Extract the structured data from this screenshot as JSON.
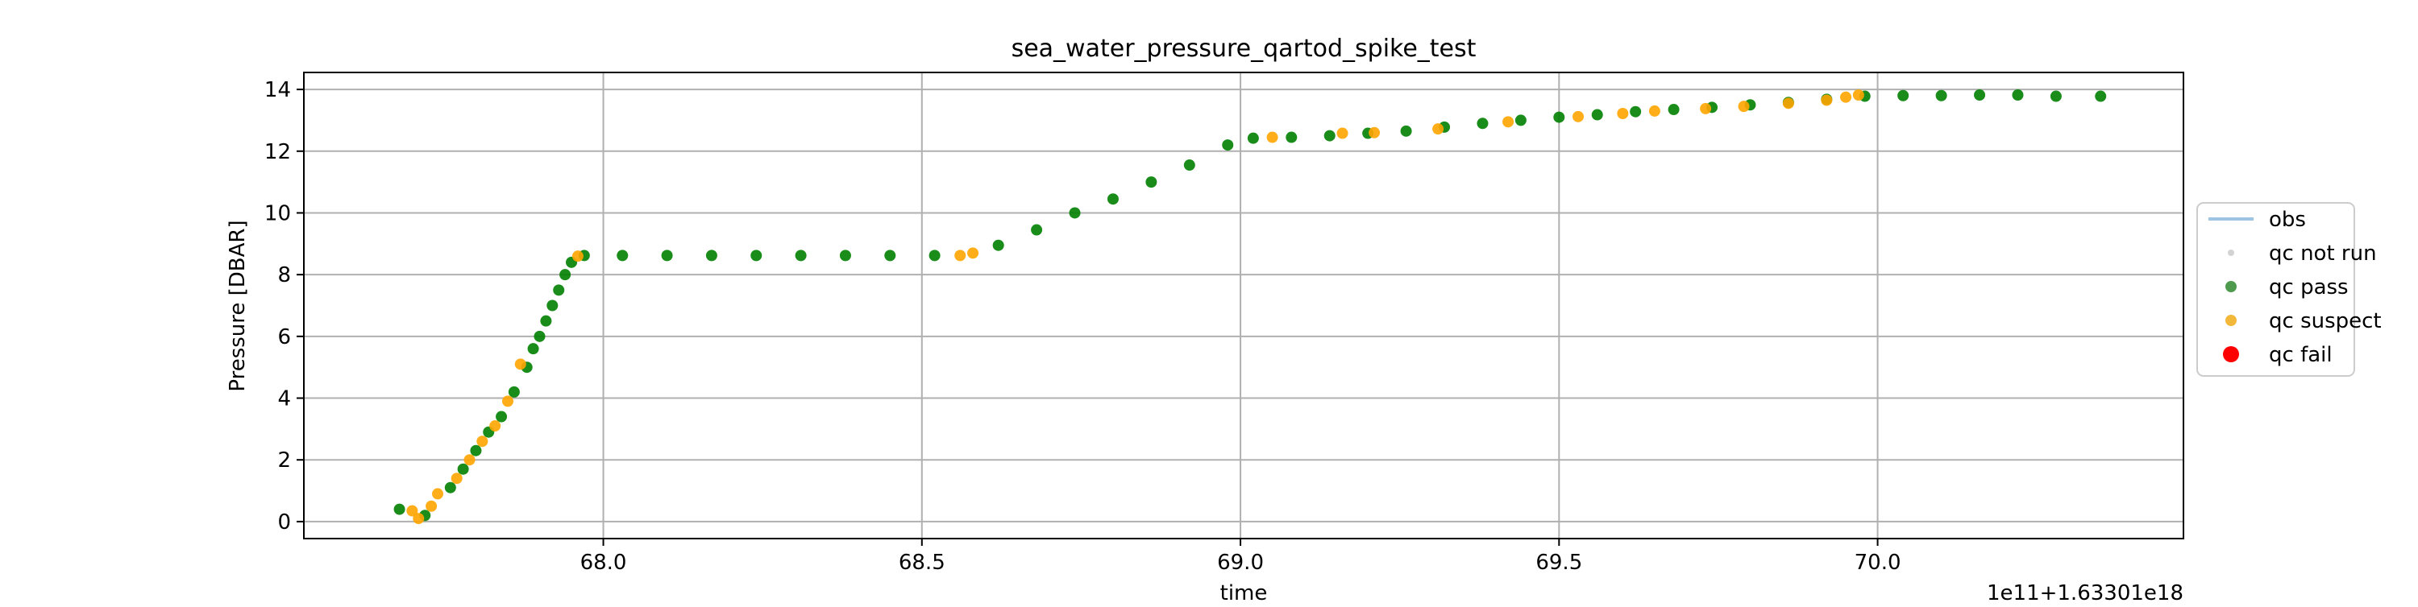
{
  "chart_data": {
    "type": "scatter",
    "title": "sea_water_pressure_qartod_spike_test",
    "xlabel": "time",
    "ylabel": "Pressure [DBAR]",
    "x_offset_label": "1e11+1.63301e18",
    "xlim": [
      67.53,
      70.48
    ],
    "ylim": [
      -0.55,
      14.55
    ],
    "xticks": [
      68.0,
      68.5,
      69.0,
      69.5,
      70.0
    ],
    "xtick_labels": [
      "68.0",
      "68.5",
      "69.0",
      "69.5",
      "70.0"
    ],
    "yticks": [
      0,
      2,
      4,
      6,
      8,
      10,
      12,
      14
    ],
    "ytick_labels": [
      "0",
      "2",
      "4",
      "6",
      "8",
      "10",
      "12",
      "14"
    ],
    "grid": true,
    "legend_placement": "outside-right",
    "legend": [
      {
        "label": "obs",
        "kind": "line",
        "color": "#9ec4e3"
      },
      {
        "label": "qc not run",
        "kind": "marker",
        "color": "#d3d3d3"
      },
      {
        "label": "qc pass",
        "kind": "marker",
        "color": "#4e9a4e"
      },
      {
        "label": "qc suspect",
        "kind": "marker",
        "color": "#f3b83a"
      },
      {
        "label": "qc fail",
        "kind": "marker",
        "color": "#ff0000"
      }
    ],
    "series": [
      {
        "name": "qc pass",
        "color": "#008000",
        "points": [
          [
            67.68,
            0.4
          ],
          [
            67.72,
            0.2
          ],
          [
            67.76,
            1.1
          ],
          [
            67.78,
            1.7
          ],
          [
            67.8,
            2.3
          ],
          [
            67.82,
            2.9
          ],
          [
            67.84,
            3.4
          ],
          [
            67.86,
            4.2
          ],
          [
            67.88,
            5.0
          ],
          [
            67.89,
            5.6
          ],
          [
            67.9,
            6.0
          ],
          [
            67.91,
            6.5
          ],
          [
            67.92,
            7.0
          ],
          [
            67.93,
            7.5
          ],
          [
            67.94,
            8.0
          ],
          [
            67.95,
            8.4
          ],
          [
            67.97,
            8.62
          ],
          [
            68.03,
            8.62
          ],
          [
            68.1,
            8.62
          ],
          [
            68.17,
            8.62
          ],
          [
            68.24,
            8.62
          ],
          [
            68.31,
            8.62
          ],
          [
            68.38,
            8.62
          ],
          [
            68.45,
            8.62
          ],
          [
            68.52,
            8.62
          ],
          [
            68.62,
            8.95
          ],
          [
            68.68,
            9.45
          ],
          [
            68.74,
            10.0
          ],
          [
            68.8,
            10.45
          ],
          [
            68.86,
            11.0
          ],
          [
            68.92,
            11.55
          ],
          [
            68.98,
            12.2
          ],
          [
            69.02,
            12.42
          ],
          [
            69.08,
            12.45
          ],
          [
            69.14,
            12.5
          ],
          [
            69.2,
            12.58
          ],
          [
            69.26,
            12.65
          ],
          [
            69.32,
            12.78
          ],
          [
            69.38,
            12.9
          ],
          [
            69.44,
            13.0
          ],
          [
            69.5,
            13.1
          ],
          [
            69.56,
            13.18
          ],
          [
            69.62,
            13.28
          ],
          [
            69.68,
            13.35
          ],
          [
            69.74,
            13.42
          ],
          [
            69.8,
            13.5
          ],
          [
            69.86,
            13.58
          ],
          [
            69.92,
            13.68
          ],
          [
            69.98,
            13.78
          ],
          [
            70.04,
            13.8
          ],
          [
            70.1,
            13.8
          ],
          [
            70.16,
            13.82
          ],
          [
            70.22,
            13.82
          ],
          [
            70.28,
            13.78
          ],
          [
            70.35,
            13.78
          ]
        ]
      },
      {
        "name": "qc suspect",
        "color": "#ffa500",
        "points": [
          [
            67.7,
            0.35
          ],
          [
            67.71,
            0.1
          ],
          [
            67.73,
            0.5
          ],
          [
            67.74,
            0.9
          ],
          [
            67.77,
            1.4
          ],
          [
            67.79,
            2.0
          ],
          [
            67.81,
            2.6
          ],
          [
            67.83,
            3.1
          ],
          [
            67.85,
            3.9
          ],
          [
            67.87,
            5.1
          ],
          [
            67.96,
            8.6
          ],
          [
            68.56,
            8.62
          ],
          [
            68.58,
            8.7
          ],
          [
            69.05,
            12.45
          ],
          [
            69.16,
            12.58
          ],
          [
            69.21,
            12.6
          ],
          [
            69.31,
            12.72
          ],
          [
            69.42,
            12.95
          ],
          [
            69.53,
            13.12
          ],
          [
            69.6,
            13.22
          ],
          [
            69.65,
            13.3
          ],
          [
            69.73,
            13.38
          ],
          [
            69.79,
            13.45
          ],
          [
            69.86,
            13.55
          ],
          [
            69.92,
            13.65
          ],
          [
            69.95,
            13.75
          ],
          [
            69.97,
            13.82
          ]
        ]
      }
    ]
  }
}
